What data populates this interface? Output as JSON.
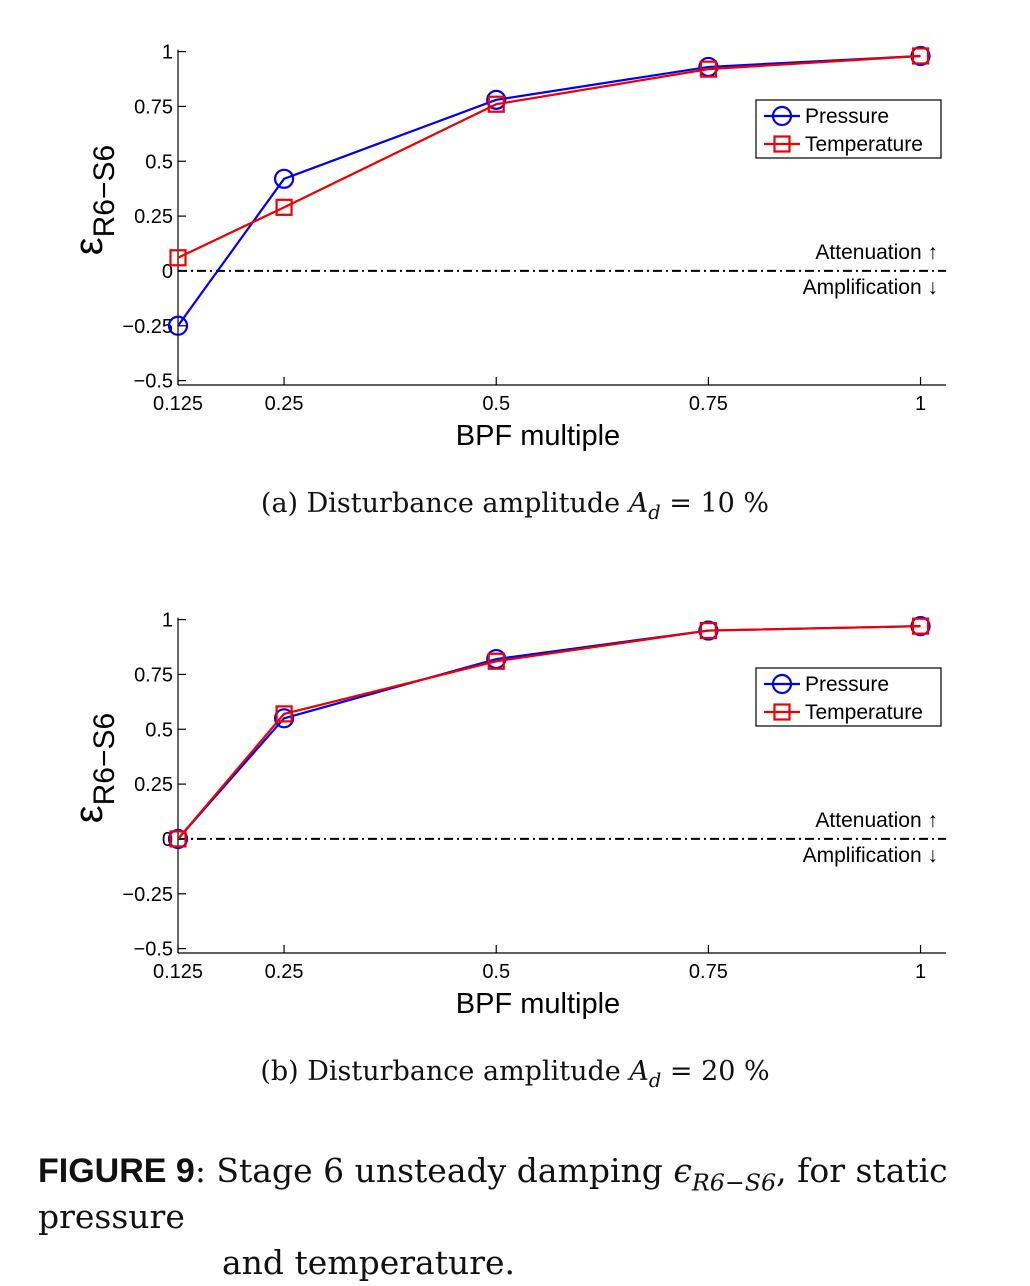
{
  "chart_data": [
    {
      "type": "line",
      "panel": "a",
      "x": [
        0.125,
        0.25,
        0.5,
        0.75,
        1
      ],
      "x_tick_labels": [
        "0.125",
        "0.25",
        "0.5",
        "0.75",
        "1"
      ],
      "y_ticks": [
        1,
        0.75,
        0.5,
        0.25,
        0,
        -0.25,
        -0.5
      ],
      "y_tick_labels": [
        "1",
        "0.75",
        "0.5",
        "0.25",
        "0",
        "−0.25",
        "−0.5"
      ],
      "xlim": [
        0.125,
        1.03
      ],
      "ylim": [
        -0.52,
        1.03
      ],
      "xlabel": "BPF multiple",
      "ylabel_main": "ε",
      "ylabel_sub": "R6−S6",
      "grid": false,
      "legend_position": "bottom-right",
      "reference_line": {
        "y": 0,
        "style": "dash-dot",
        "color": "#000000"
      },
      "annotations": [
        "Attenuation ↑",
        "Amplification ↓"
      ],
      "series": [
        {
          "name": "Pressure",
          "marker": "circle",
          "color": "#0000ee",
          "values": [
            -0.25,
            0.42,
            0.78,
            0.93,
            0.98
          ]
        },
        {
          "name": "Temperature",
          "marker": "square",
          "color": "#ee0000",
          "values": [
            0.06,
            0.29,
            0.76,
            0.92,
            0.98
          ]
        }
      ]
    },
    {
      "type": "line",
      "panel": "b",
      "x": [
        0.125,
        0.25,
        0.5,
        0.75,
        1
      ],
      "x_tick_labels": [
        "0.125",
        "0.25",
        "0.5",
        "0.75",
        "1"
      ],
      "y_ticks": [
        1,
        0.75,
        0.5,
        0.25,
        0,
        -0.25,
        -0.5
      ],
      "y_tick_labels": [
        "1",
        "0.75",
        "0.5",
        "0.25",
        "0",
        "−0.25",
        "−0.5"
      ],
      "xlim": [
        0.125,
        1.03
      ],
      "ylim": [
        -0.52,
        1.03
      ],
      "xlabel": "BPF multiple",
      "ylabel_main": "ε",
      "ylabel_sub": "R6−S6",
      "grid": false,
      "legend_position": "bottom-right",
      "reference_line": {
        "y": 0,
        "style": "dash-dot",
        "color": "#000000"
      },
      "annotations": [
        "Attenuation ↑",
        "Amplification ↓"
      ],
      "series": [
        {
          "name": "Pressure",
          "marker": "circle",
          "color": "#0000ee",
          "values": [
            0.0,
            0.55,
            0.82,
            0.95,
            0.97
          ]
        },
        {
          "name": "Temperature",
          "marker": "square",
          "color": "#ee0000",
          "values": [
            0.0,
            0.57,
            0.81,
            0.95,
            0.97
          ]
        }
      ]
    }
  ],
  "captions": {
    "a_prefix": "(a)  Disturbance amplitude ",
    "a_var": "A",
    "a_sub": "d",
    "a_value": " = 10 %",
    "b_prefix": "(b)  Disturbance amplitude ",
    "b_var": "A",
    "b_sub": "d",
    "b_value": " = 20 %"
  },
  "figure_caption": {
    "label": "FIGURE 9",
    "text_1": ": Stage 6 unsteady damping ",
    "symbol": "ϵ",
    "symbol_sub": "R6−S6",
    "text_2": ", for static pressure",
    "text_3": "and temperature."
  }
}
